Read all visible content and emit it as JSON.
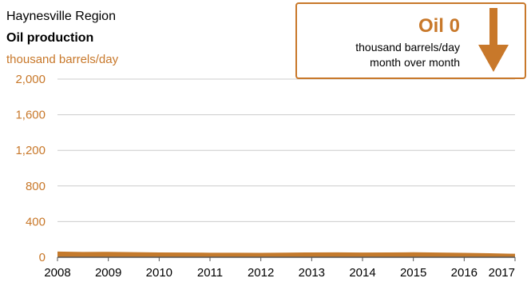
{
  "header": {
    "region": "Haynesville Region",
    "title": "Oil production",
    "unit": "thousand barrels/day"
  },
  "callout": {
    "headline": "Oil 0",
    "line1": "thousand barrels/day",
    "line2": "month over month",
    "direction": "down"
  },
  "colors": {
    "accent": "#c8782a",
    "series": "#c47a2c",
    "grid": "#cccccc",
    "axis": "#555555"
  },
  "chart_data": {
    "type": "area",
    "title": "Oil production",
    "ylabel": "thousand barrels/day",
    "ylim": [
      0,
      2000
    ],
    "yticks": [
      "0",
      "400",
      "800",
      "1,200",
      "1,600",
      "2,000"
    ],
    "ytick_values": [
      0,
      400,
      800,
      1200,
      1600,
      2000
    ],
    "xlim": [
      2008,
      2017
    ],
    "xticks": [
      "2008",
      "2009",
      "2010",
      "2011",
      "2012",
      "2013",
      "2014",
      "2015",
      "2016",
      "2017"
    ],
    "xtick_values": [
      2008,
      2009,
      2010,
      2011,
      2012,
      2013,
      2014,
      2015,
      2016,
      2017
    ],
    "grid": true,
    "series": [
      {
        "x": [
          2008.0,
          2008.5,
          2009.0,
          2009.5,
          2010.0,
          2010.5,
          2011.0,
          2011.5,
          2012.0,
          2012.5,
          2013.0,
          2013.5,
          2014.0,
          2014.5,
          2015.0,
          2015.5,
          2016.0,
          2016.5,
          2017.0
        ],
        "values": [
          55,
          50,
          52,
          48,
          45,
          44,
          42,
          41,
          40,
          43,
          45,
          46,
          44,
          45,
          47,
          44,
          40,
          36,
          30
        ]
      }
    ]
  }
}
